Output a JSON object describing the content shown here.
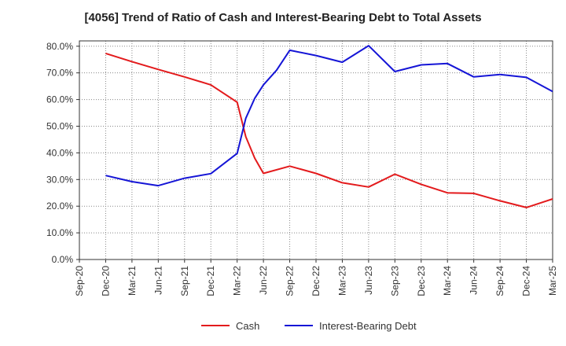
{
  "chart_data": {
    "type": "line",
    "title": "[4056]  Trend of Ratio of Cash and Interest-Bearing Debt to Total Assets",
    "x_ticks": [
      "Sep-20",
      "Dec-20",
      "Mar-21",
      "Jun-21",
      "Sep-21",
      "Dec-21",
      "Mar-22",
      "Jun-22",
      "Sep-22",
      "Dec-22",
      "Mar-23",
      "Jun-23",
      "Sep-23",
      "Dec-23",
      "Mar-24",
      "Jun-24",
      "Sep-24",
      "Dec-24",
      "Mar-25"
    ],
    "y_ticks": [
      "0.0%",
      "10.0%",
      "20.0%",
      "30.0%",
      "40.0%",
      "50.0%",
      "60.0%",
      "70.0%",
      "80.0%"
    ],
    "ylim": [
      0,
      82
    ],
    "grid": true,
    "legend_position": "bottom",
    "series": [
      {
        "name": "Cash",
        "color": "#e31a1c",
        "points": [
          [
            1,
            77.3
          ],
          [
            2,
            74.2
          ],
          [
            3,
            71.3
          ],
          [
            4,
            68.5
          ],
          [
            5,
            65.5
          ],
          [
            6,
            59.0
          ],
          [
            6.33,
            46.0
          ],
          [
            6.67,
            38.0
          ],
          [
            7,
            32.3
          ],
          [
            8,
            35.0
          ],
          [
            9,
            32.3
          ],
          [
            10,
            28.8
          ],
          [
            11,
            27.2
          ],
          [
            12,
            32.0
          ],
          [
            13,
            28.2
          ],
          [
            14,
            25.0
          ],
          [
            15,
            24.8
          ],
          [
            16,
            22.0
          ],
          [
            17,
            19.5
          ],
          [
            18,
            22.7
          ]
        ]
      },
      {
        "name": "Interest-Bearing Debt",
        "color": "#1515d6",
        "points": [
          [
            1,
            31.5
          ],
          [
            2,
            29.2
          ],
          [
            3,
            27.7
          ],
          [
            4,
            30.5
          ],
          [
            5,
            32.2
          ],
          [
            6,
            39.8
          ],
          [
            6.33,
            53.0
          ],
          [
            6.67,
            60.5
          ],
          [
            7,
            65.5
          ],
          [
            7.5,
            71.0
          ],
          [
            8,
            78.5
          ],
          [
            9,
            76.5
          ],
          [
            10,
            74.0
          ],
          [
            11,
            80.2
          ],
          [
            12,
            70.5
          ],
          [
            13,
            73.0
          ],
          [
            14,
            73.5
          ],
          [
            15,
            68.5
          ],
          [
            16,
            69.4
          ],
          [
            17,
            68.3
          ],
          [
            18,
            63.0
          ]
        ]
      }
    ]
  }
}
